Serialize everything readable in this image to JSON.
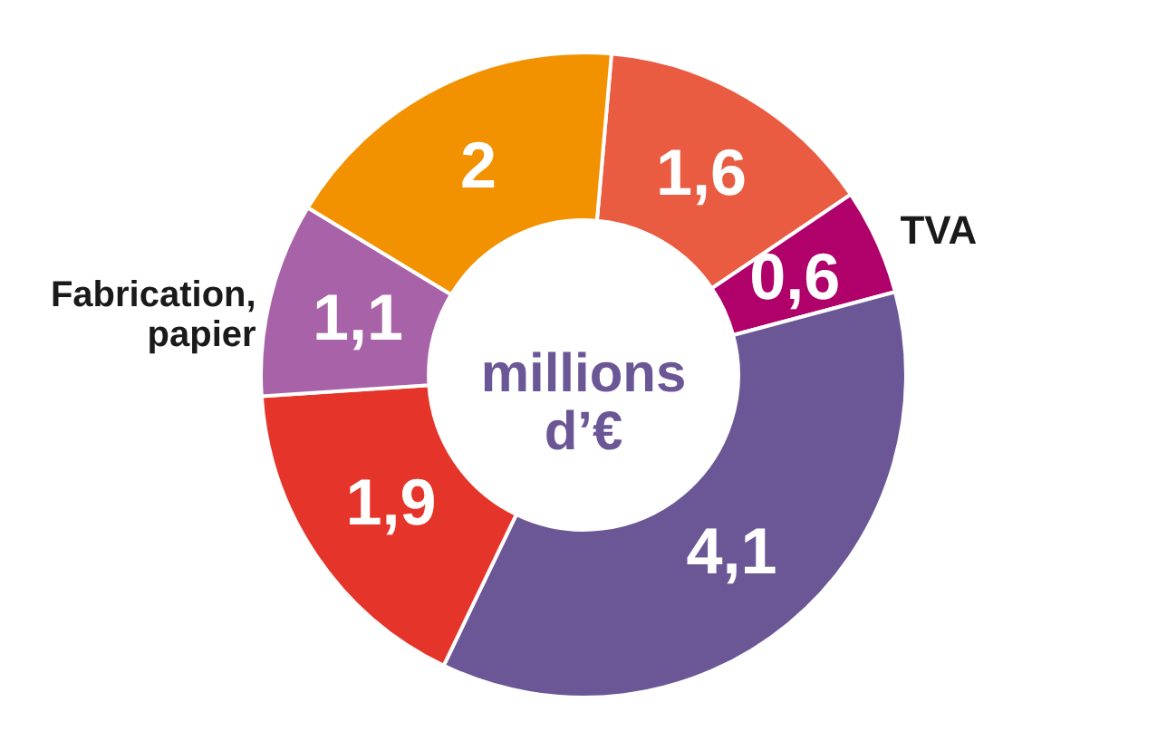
{
  "chart_data": {
    "type": "donut",
    "categories": [
      null,
      "TVA",
      null,
      null,
      "Fabrication, papier",
      null
    ],
    "values": [
      1.6,
      0.6,
      4.1,
      1.9,
      1.1,
      2
    ],
    "value_labels": [
      "1,6",
      "0,6",
      "4,1",
      "1,9",
      "1,1",
      "2"
    ],
    "colors": [
      "#e95c42",
      "#b0006a",
      "#6b5796",
      "#e5352a",
      "#a862a8",
      "#f39200"
    ],
    "annotations": [
      "millions d’€"
    ]
  }
}
